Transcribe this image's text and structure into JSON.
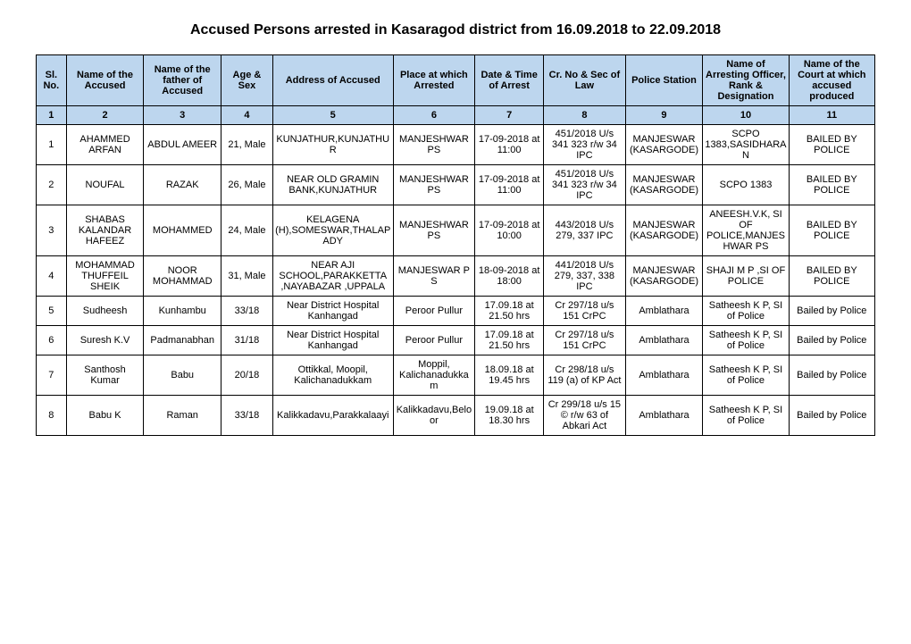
{
  "title": "Accused Persons arrested in   Kasaragod   district from   16.09.2018 to 22.09.2018",
  "headers": [
    "Sl. No.",
    "Name of the Accused",
    "Name of the father of Accused",
    "Age & Sex",
    "Address of Accused",
    "Place at which Arrested",
    "Date & Time of Arrest",
    "Cr. No & Sec of Law",
    "Police Station",
    "Name of Arresting Officer, Rank & Designation",
    "Name of the Court at which accused produced"
  ],
  "numrow": [
    "1",
    "2",
    "3",
    "4",
    "5",
    "6",
    "7",
    "8",
    "9",
    "10",
    "11"
  ],
  "rows": [
    [
      "1",
      "AHAMMED ARFAN",
      "ABDUL AMEER",
      "21, Male",
      "KUNJATHUR,KUNJATHUR",
      "MANJESHWAR PS",
      "17-09-2018 at 11:00",
      "451/2018 U/s 341 323 r/w 34 IPC",
      "MANJESWAR (KASARGODE)",
      "SCPO 1383,SASIDHARAN",
      "BAILED BY POLICE"
    ],
    [
      "2",
      "NOUFAL",
      "RAZAK",
      "26, Male",
      "NEAR OLD GRAMIN BANK,KUNJATHUR",
      "MANJESHWAR PS",
      "17-09-2018 at 11:00",
      "451/2018 U/s 341 323 r/w 34 IPC",
      "MANJESWAR (KASARGODE)",
      "SCPO 1383",
      "BAILED BY POLICE"
    ],
    [
      "3",
      "SHABAS KALANDAR HAFEEZ",
      "MOHAMMED",
      "24, Male",
      "KELAGENA (H),SOMESWAR,THALAPADY",
      "MANJESHWAR PS",
      "17-09-2018 at 10:00",
      "443/2018 U/s 279, 337 IPC",
      "MANJESWAR (KASARGODE)",
      "ANEESH.V.K, SI OF POLICE,MANJESHWAR PS",
      "BAILED BY POLICE"
    ],
    [
      "4",
      "MOHAMMAD THUFFEIL SHEIK",
      "NOOR MOHAMMAD",
      "31, Male",
      "NEAR AJI SCHOOL,PARAKKETTA ,NAYABAZAR ,UPPALA",
      "MANJESWAR P S",
      "18-09-2018 at 18:00",
      "441/2018 U/s 279, 337, 338 IPC",
      "MANJESWAR (KASARGODE)",
      "SHAJI M P ,SI OF POLICE",
      "BAILED BY POLICE"
    ],
    [
      "5",
      "Sudheesh",
      "Kunhambu",
      "33/18",
      "Near District Hospital Kanhangad",
      "Peroor Pullur",
      "17.09.18 at 21.50 hrs",
      "Cr 297/18 u/s 151 CrPC",
      "Amblathara",
      "Satheesh K P, SI of Police",
      "Bailed by Police"
    ],
    [
      "6",
      "Suresh K.V",
      "Padmanabhan",
      "31/18",
      "Near District Hospital Kanhangad",
      "Peroor Pullur",
      "17.09.18 at 21.50 hrs",
      "Cr 297/18 u/s 151 CrPC",
      "Amblathara",
      "Satheesh K P, SI of Police",
      "Bailed by Police"
    ],
    [
      "7",
      "Santhosh Kumar",
      "Babu",
      "20/18",
      "Ottikkal, Moopil, Kalichanadukkam",
      "Moppil, Kalichanadukkam",
      "18.09.18 at 19.45 hrs",
      "Cr 298/18 u/s 119 (a) of KP Act",
      "Amblathara",
      "Satheesh K P, SI of Police",
      "Bailed by Police"
    ],
    [
      "8",
      "Babu K",
      "Raman",
      "33/18",
      "Kalikkadavu,Parakkalaayi",
      "Kalikkadavu,Beloor",
      "19.09.18 at 18.30 hrs",
      "Cr 299/18 u/s 15 © r/w 63 of Abkari Act",
      "Amblathara",
      "Satheesh K P, SI of Police",
      "Bailed by Police"
    ]
  ],
  "style": {
    "header_bg": "#bdd6ee",
    "border_color": "#000000",
    "font_family": "Arial",
    "title_fontsize": 16,
    "cell_fontsize": 11,
    "col_widths_pct": [
      3.5,
      9,
      9,
      6,
      14,
      9.5,
      8,
      9.5,
      9,
      10,
      10
    ]
  }
}
